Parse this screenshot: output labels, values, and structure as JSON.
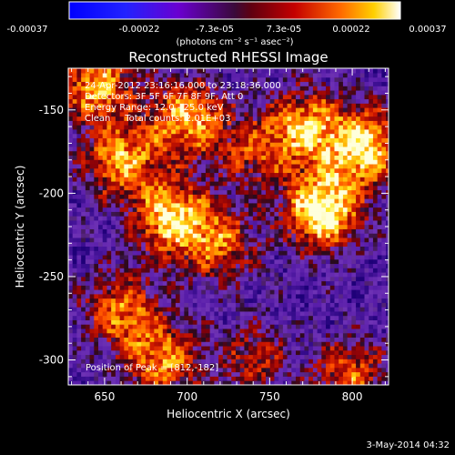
{
  "chart_data": {
    "type": "heatmap",
    "title": "Reconstructed RHESSI Image",
    "xlabel": "Heliocentric X (arcsec)",
    "ylabel": "Heliocentric Y (arcsec)",
    "xlim": [
      628,
      822
    ],
    "ylim": [
      -315,
      -125
    ],
    "x_ticks": [
      650,
      700,
      750,
      800
    ],
    "y_ticks": [
      -300,
      -250,
      -200,
      -150
    ],
    "annotations": [
      "24-Apr-2012 23:16:16.000 to 23:18:36.000",
      "Detectors: 3F 5F 6F 7F 8F 9F, Att 0",
      "Energy Range: 12.0 - 25.0 keV",
      "Clean     Total counts: 2.01E+03"
    ],
    "peak_label": "Position of Peak = [812,-182]",
    "peak": [
      812,
      -182
    ],
    "colorbar": {
      "ticks": [
        "-0.00037",
        "-0.00022",
        "-7.3e-05",
        "7.3e-05",
        "0.00022",
        "0.00037"
      ],
      "units": "(photons cm⁻² s⁻¹ asec⁻²)",
      "range": [
        -0.00037,
        0.00037
      ]
    },
    "emission_sources": [
      {
        "x": 782,
        "y": -210,
        "strength": 1.0
      },
      {
        "x": 808,
        "y": -172,
        "strength": 0.85
      },
      {
        "x": 772,
        "y": -160,
        "strength": 0.7
      },
      {
        "x": 700,
        "y": -155,
        "strength": 0.75
      },
      {
        "x": 690,
        "y": -215,
        "strength": 0.8
      },
      {
        "x": 660,
        "y": -180,
        "strength": 0.7
      },
      {
        "x": 645,
        "y": -135,
        "strength": 0.7
      },
      {
        "x": 720,
        "y": -230,
        "strength": 0.55
      },
      {
        "x": 740,
        "y": -175,
        "strength": 0.45
      },
      {
        "x": 685,
        "y": -300,
        "strength": 0.65
      },
      {
        "x": 660,
        "y": -270,
        "strength": 0.6
      },
      {
        "x": 798,
        "y": -310,
        "strength": 0.55
      },
      {
        "x": 740,
        "y": -300,
        "strength": 0.4
      }
    ],
    "date_stamp": "3-May-2014 04:32"
  }
}
